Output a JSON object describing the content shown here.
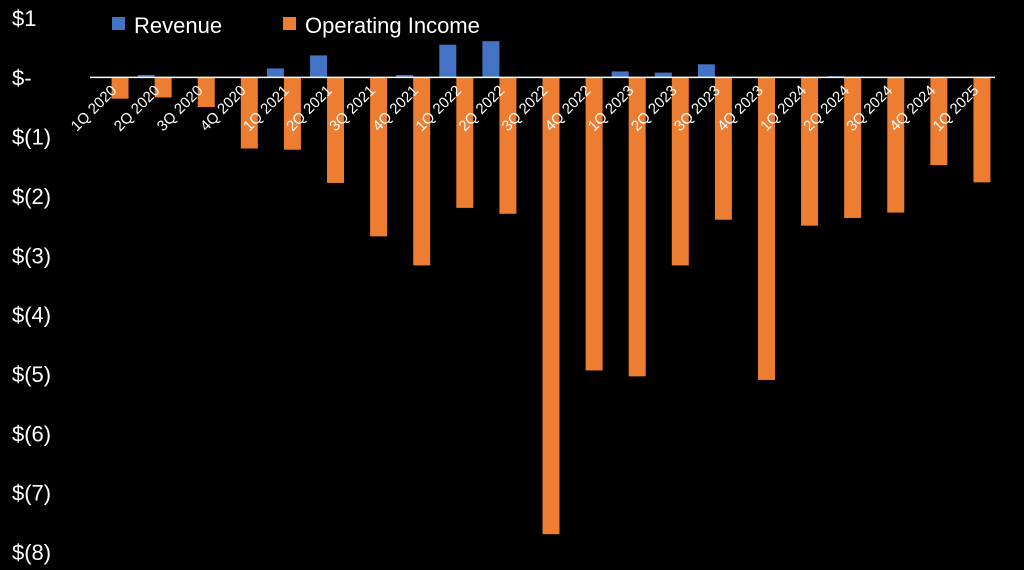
{
  "chart_data": {
    "type": "bar",
    "title": "",
    "xlabel": "",
    "ylabel": "",
    "ylim": [
      -8,
      1
    ],
    "y_ticks": [
      {
        "value": 1,
        "label": "$1"
      },
      {
        "value": 0,
        "label": "$-"
      },
      {
        "value": -1,
        "label": "$(1)"
      },
      {
        "value": -2,
        "label": "$(2)"
      },
      {
        "value": -3,
        "label": "$(3)"
      },
      {
        "value": -4,
        "label": "$(4)"
      },
      {
        "value": -5,
        "label": "$(5)"
      },
      {
        "value": -6,
        "label": "$(6)"
      },
      {
        "value": -7,
        "label": "$(7)"
      },
      {
        "value": -8,
        "label": "$(8)"
      }
    ],
    "grid": false,
    "legend_position": "top",
    "categories": [
      "1Q 2020",
      "2Q 2020",
      "3Q 2020",
      "4Q 2020",
      "1Q 2021",
      "2Q 2021",
      "3Q 2021",
      "4Q 2021",
      "1Q 2022",
      "2Q 2022",
      "3Q 2022",
      "4Q 2022",
      "1Q 2023",
      "2Q 2023",
      "3Q 2023",
      "4Q 2023",
      "1Q 2024",
      "2Q 2024",
      "3Q 2024",
      "4Q 2024",
      "1Q 2025"
    ],
    "series": [
      {
        "name": "Revenue",
        "color": "#4472C4",
        "values": [
          0,
          0.04,
          0,
          0,
          0.15,
          0.37,
          0,
          0.04,
          0.55,
          0.61,
          0,
          0,
          0.1,
          0.08,
          0.22,
          0,
          0,
          0.02,
          0,
          0,
          0
        ]
      },
      {
        "name": "Operating Income",
        "color": "#ED7D31",
        "values": [
          -0.36,
          -0.34,
          -0.5,
          -1.2,
          -1.22,
          -1.78,
          -2.68,
          -3.17,
          -2.2,
          -2.3,
          -7.7,
          -4.94,
          -5.04,
          -3.17,
          -2.4,
          -5.1,
          -2.5,
          -2.37,
          -2.28,
          -1.48,
          -1.77
        ]
      }
    ],
    "axis_color": "#FFFFFF",
    "background": "#000000"
  }
}
